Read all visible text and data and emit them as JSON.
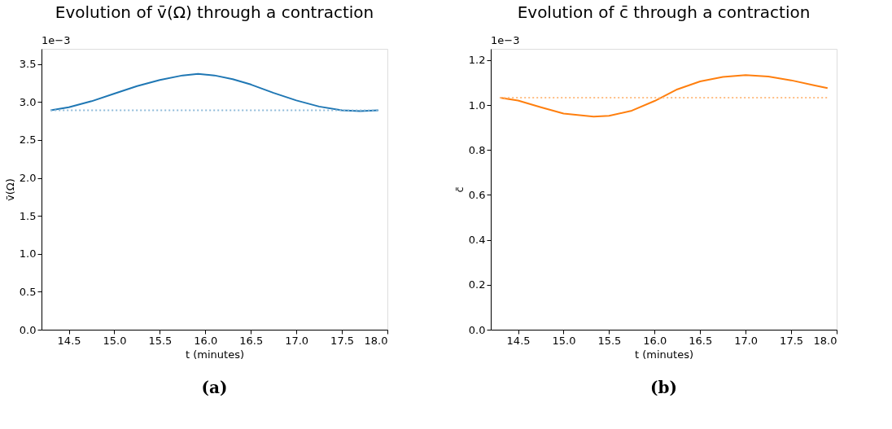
{
  "chart_data": [
    {
      "type": "line",
      "title": "Evolution of v̄(Ω) through a contraction",
      "xlabel": "t (minutes)",
      "ylabel": "v̄(Ω)",
      "xlim": [
        14.2,
        18.0
      ],
      "ylim": [
        0,
        3.7
      ],
      "xticks": [
        14.5,
        {
          "value": 15,
          "label": "15.0"
        },
        15.5,
        {
          "value": 16,
          "label": "16.0"
        },
        16.5,
        {
          "value": 17,
          "label": "17.0"
        },
        17.5,
        {
          "value": 18,
          "label": "18.0"
        }
      ],
      "yticks": [
        {
          "value": 0,
          "label": "0.0"
        },
        0.5,
        {
          "value": 1,
          "label": "1.0"
        },
        1.5,
        {
          "value": 2,
          "label": "2.0"
        },
        2.5,
        {
          "value": 3,
          "label": "3.0"
        },
        3.5
      ],
      "grid": false,
      "series": [
        {
          "color": "#1f77b4",
          "line_style": "solid",
          "x": [
            14.3,
            14.5,
            14.75,
            15.0,
            15.25,
            15.5,
            15.75,
            15.92,
            16.1,
            16.3,
            16.5,
            16.75,
            17.0,
            17.25,
            17.5,
            17.7,
            17.9
          ],
          "values": [
            2.89,
            2.93,
            3.01,
            3.11,
            3.21,
            3.29,
            3.35,
            3.37,
            3.35,
            3.3,
            3.23,
            3.12,
            3.02,
            2.94,
            2.89,
            2.88,
            2.89
          ]
        },
        {
          "color": "#8fbbd9",
          "line_style": "dotted",
          "x": [
            14.3,
            17.9
          ],
          "values": [
            2.89,
            2.89
          ]
        }
      ],
      "annotations": [
        "1e−3",
        "(a)"
      ]
    },
    {
      "type": "line",
      "title": "Evolution of c̄ through a contraction",
      "xlabel": "t (minutes)",
      "ylabel": "c̄",
      "xlim": [
        14.2,
        18.0
      ],
      "ylim": [
        0,
        1.25
      ],
      "xticks": [
        14.5,
        {
          "value": 15,
          "label": "15.0"
        },
        15.5,
        {
          "value": 16,
          "label": "16.0"
        },
        16.5,
        {
          "value": 17,
          "label": "17.0"
        },
        17.5,
        {
          "value": 18,
          "label": "18.0"
        }
      ],
      "yticks": [
        {
          "value": 0,
          "label": "0.0"
        },
        0.2,
        0.4,
        0.6,
        0.8,
        {
          "value": 1,
          "label": "1.0"
        },
        1.2
      ],
      "grid": false,
      "series": [
        {
          "color": "#ff7f0e",
          "line_style": "solid",
          "x": [
            14.3,
            14.5,
            14.75,
            15.0,
            15.33,
            15.5,
            15.75,
            16.0,
            16.25,
            16.5,
            16.75,
            17.0,
            17.25,
            17.5,
            17.75,
            17.9
          ],
          "values": [
            1.033,
            1.02,
            0.99,
            0.962,
            0.948,
            0.952,
            0.975,
            1.018,
            1.07,
            1.105,
            1.125,
            1.133,
            1.127,
            1.11,
            1.088,
            1.075
          ]
        },
        {
          "color": "#ffbf86",
          "line_style": "dotted",
          "x": [
            14.3,
            17.9
          ],
          "values": [
            1.033,
            1.033
          ]
        }
      ],
      "annotations": [
        "1e−3",
        "(b)"
      ]
    }
  ]
}
